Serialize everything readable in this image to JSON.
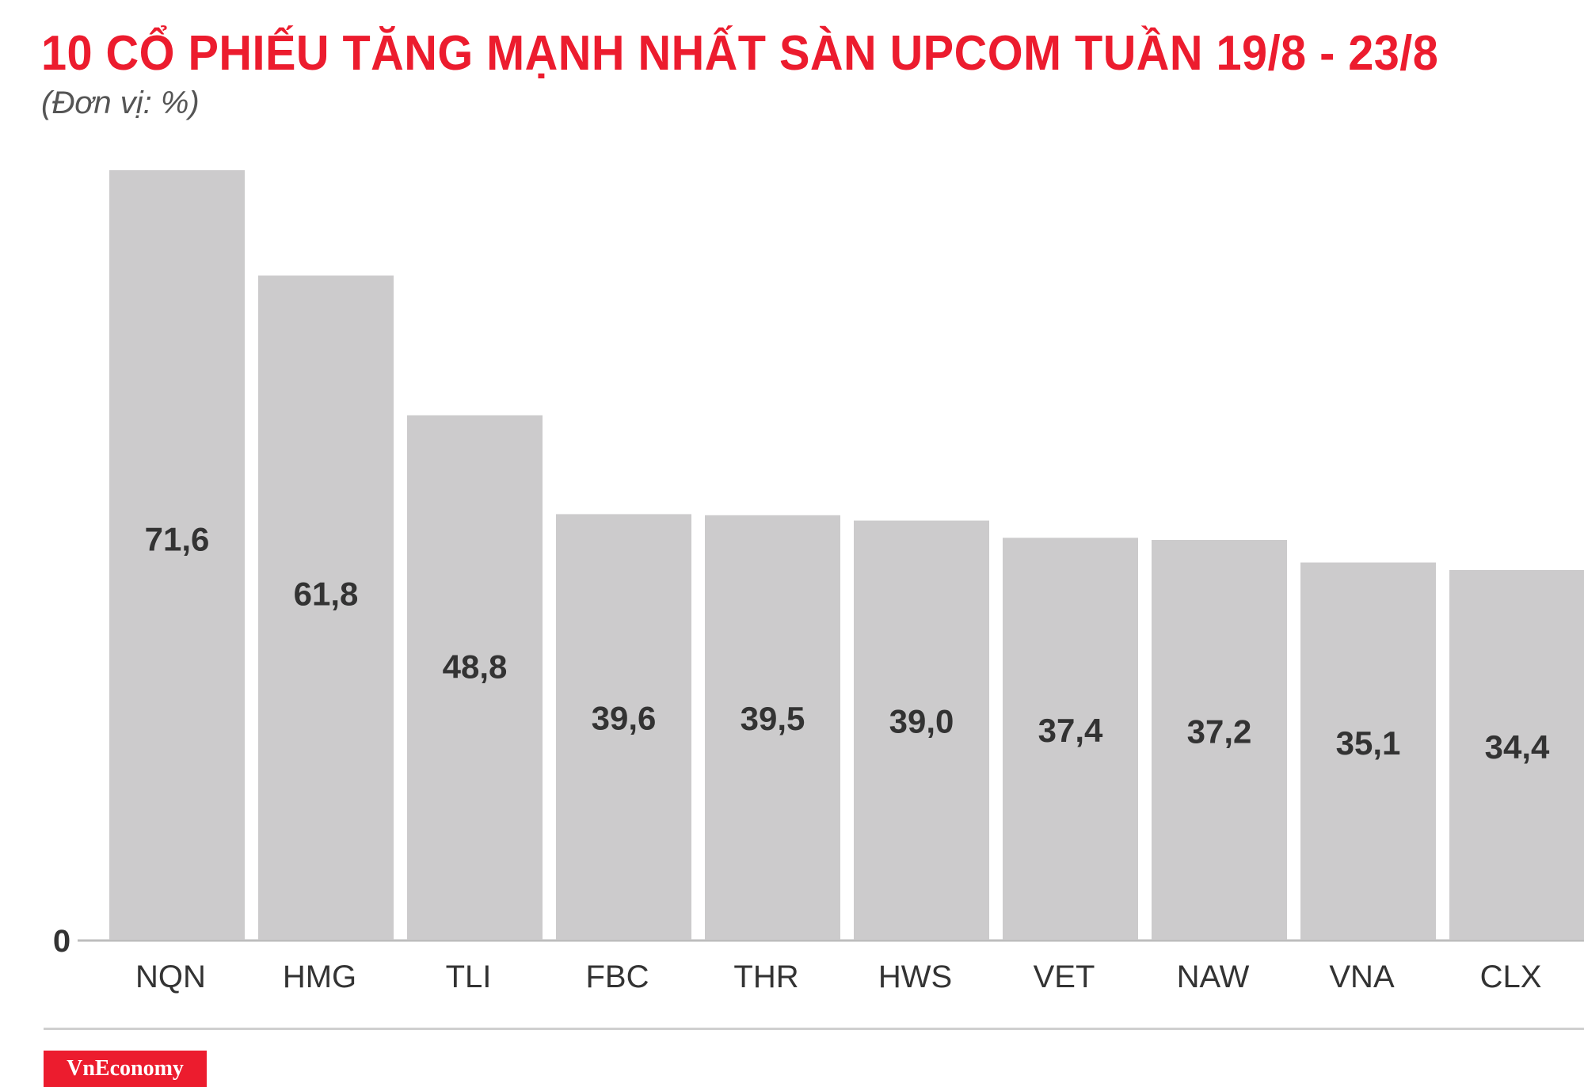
{
  "header": {
    "title": "10 CỔ PHIẾU TĂNG MẠNH NHẤT SÀN UPCOM TUẦN 19/8 - 23/8",
    "unit": "(Đơn vị: %)"
  },
  "brand": {
    "label": "VnEconomy"
  },
  "colors": {
    "title": "#ec1c2e",
    "bar": "#cccbcc",
    "value_label": "#333333",
    "category_label": "#333333",
    "brand_bg": "#ec1c2e"
  },
  "chart_data": {
    "type": "bar",
    "title": "10 CỔ PHIẾU TĂNG MẠNH NHẤT SÀN UPCOM TUẦN 19/8 - 23/8",
    "ylabel": "(Đơn vị: %)",
    "xlabel": "",
    "categories": [
      "NQN",
      "HMG",
      "TLI",
      "FBC",
      "THR",
      "HWS",
      "VET",
      "NAW",
      "VNA",
      "CLX"
    ],
    "values": [
      71.6,
      61.8,
      48.8,
      39.6,
      39.5,
      39.0,
      37.4,
      37.2,
      35.1,
      34.4
    ],
    "value_labels": [
      "71,6",
      "61,8",
      "48,8",
      "39,6",
      "39,5",
      "39,0",
      "37,4",
      "37,2",
      "35,1",
      "34,4"
    ],
    "y_tick_labels": [
      "0"
    ],
    "ylim": [
      0,
      71.6
    ],
    "grid": false,
    "legend": "none"
  }
}
